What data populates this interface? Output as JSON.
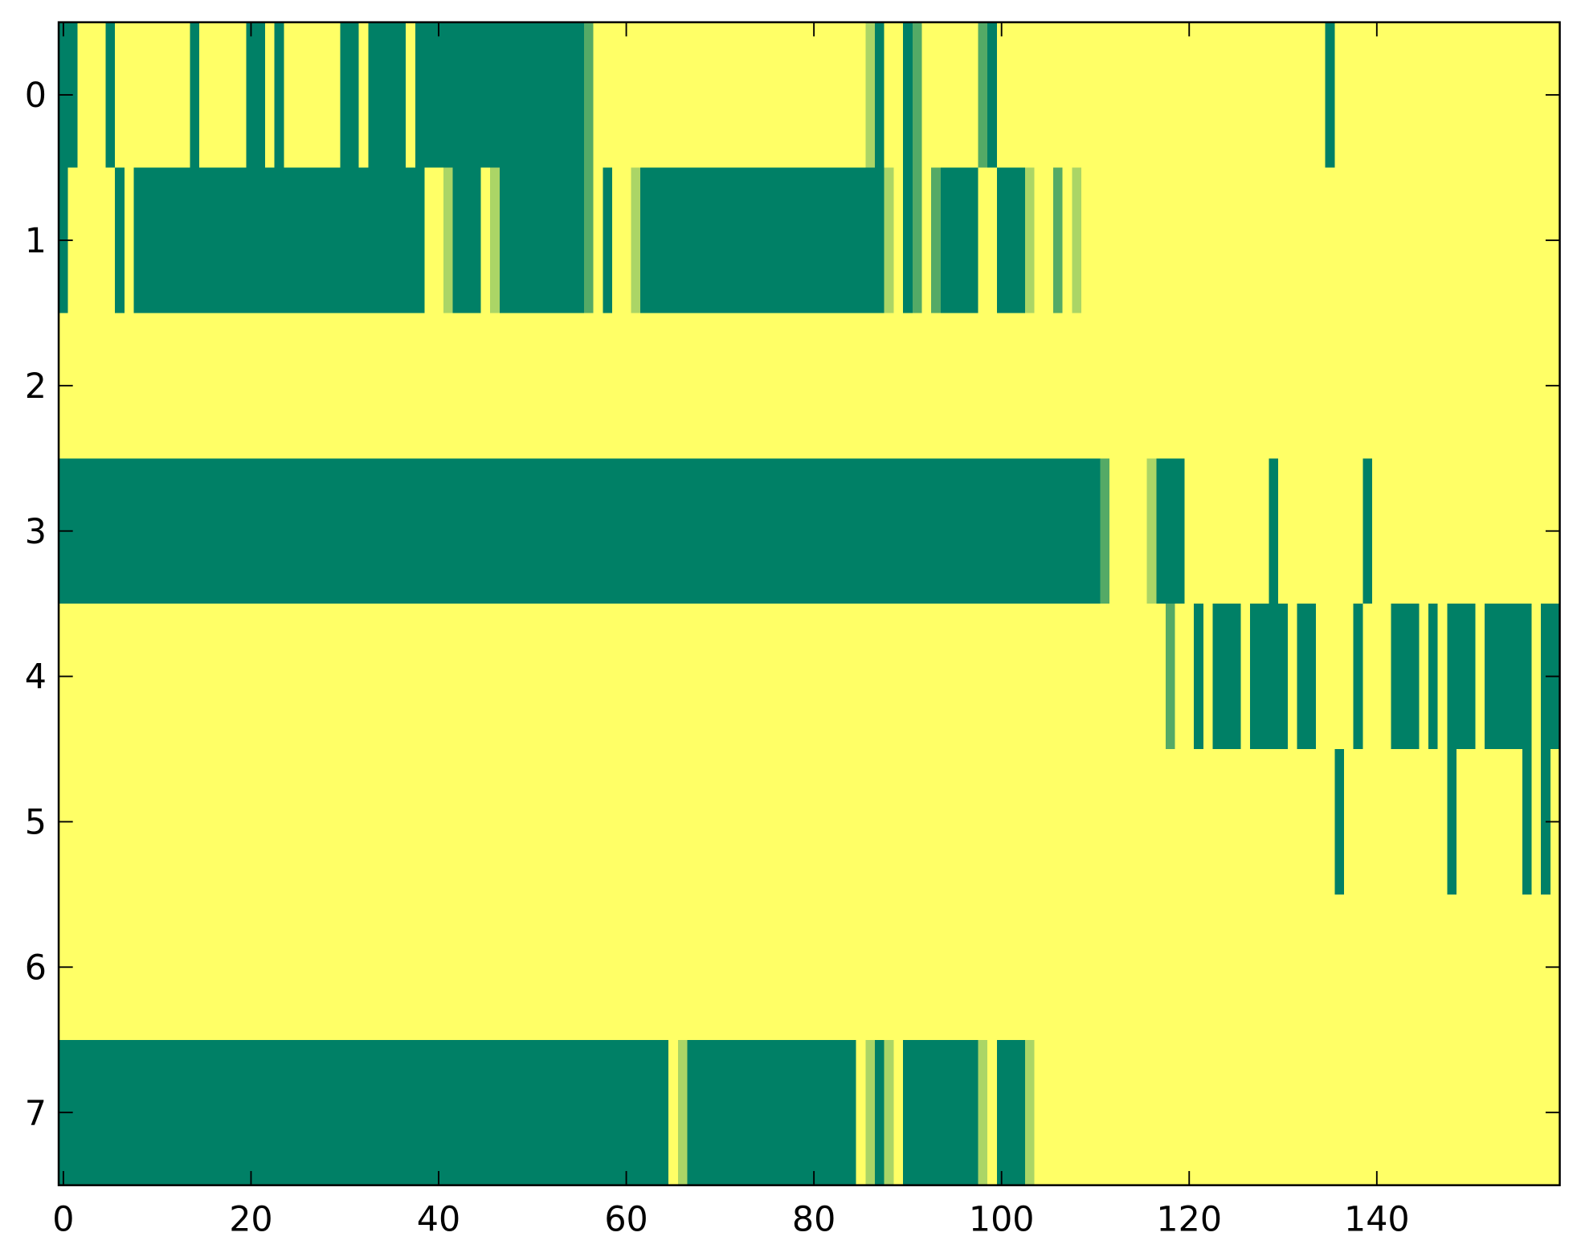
{
  "chart_data": {
    "type": "heatmap",
    "xlim": [
      -0.5,
      159.5
    ],
    "ylim": [
      7.5,
      -0.5
    ],
    "xticks": [
      0,
      20,
      40,
      60,
      80,
      100,
      120,
      140
    ],
    "yticks": [
      0,
      1,
      2,
      3,
      4,
      5,
      6,
      7
    ],
    "clim": [
      0,
      1
    ],
    "colormap": [
      "#008066",
      "#ffff66"
    ],
    "z": [
      [
        0,
        0,
        1,
        1,
        1,
        0,
        1,
        1,
        1,
        1,
        1,
        1,
        1,
        1,
        0,
        1,
        1,
        1,
        1,
        1,
        0,
        0,
        1,
        0,
        1,
        1,
        1,
        1,
        1,
        1,
        0,
        0,
        1,
        0,
        0,
        0,
        0,
        1,
        0,
        0,
        0,
        0,
        0,
        0,
        0,
        0,
        0,
        0,
        0,
        0,
        0,
        0,
        0,
        0,
        0,
        0,
        0.33,
        1,
        1,
        1,
        1,
        1,
        1,
        1,
        1,
        1,
        1,
        1,
        1,
        1,
        1,
        1,
        1,
        1,
        1,
        1,
        1,
        1,
        1,
        1,
        1,
        1,
        1,
        1,
        1,
        1,
        0.67,
        0,
        1,
        1,
        0,
        0.33,
        1,
        1,
        1,
        1,
        1,
        1,
        0.33,
        0,
        1,
        1,
        1,
        1,
        1,
        1,
        1,
        1,
        1,
        1,
        1,
        1,
        1,
        1,
        1,
        1,
        1,
        1,
        1,
        1,
        1,
        1,
        1,
        1,
        1,
        1,
        1,
        1,
        1,
        1,
        1,
        1,
        1,
        1,
        1,
        0,
        1,
        1,
        1,
        1,
        1,
        1,
        1,
        1,
        1,
        1,
        1,
        1,
        1,
        1,
        1,
        1,
        1,
        1,
        1,
        1,
        1,
        1,
        1,
        1
      ],
      [
        0,
        1,
        1,
        1,
        1,
        1,
        0,
        1,
        0,
        0,
        0,
        0,
        0,
        0,
        0,
        0,
        0,
        0,
        0,
        0,
        0,
        0,
        0,
        0,
        0,
        0,
        0,
        0,
        0,
        0,
        0,
        0,
        0,
        0,
        0,
        0,
        0,
        0,
        0,
        1,
        1,
        0.67,
        0,
        0,
        0,
        1,
        0.67,
        0,
        0,
        0,
        0,
        0,
        0,
        0,
        0,
        0,
        0.33,
        1,
        0,
        1,
        1,
        0.67,
        0,
        0,
        0,
        0,
        0,
        0,
        0,
        0,
        0,
        0,
        0,
        0,
        0,
        0,
        0,
        0,
        0,
        0,
        0,
        0,
        0,
        0,
        0,
        0,
        0,
        0,
        0.67,
        1,
        0,
        0.33,
        1,
        0.33,
        0,
        0,
        0,
        0,
        1,
        1,
        0,
        0,
        0,
        0.67,
        1,
        1,
        0.33,
        1,
        0.67,
        1,
        1,
        1,
        1,
        1,
        1,
        1,
        1,
        1,
        1,
        1,
        1,
        1,
        1,
        1,
        1,
        1,
        1,
        1,
        1,
        1,
        1,
        1,
        1,
        1,
        1,
        1,
        1,
        1,
        1,
        1,
        1,
        1,
        1,
        1,
        1,
        1,
        1,
        1,
        1,
        1,
        1,
        1,
        1,
        1,
        1,
        1,
        1,
        1,
        1,
        1
      ],
      [
        1,
        1,
        1,
        1,
        1,
        1,
        1,
        1,
        1,
        1,
        1,
        1,
        1,
        1,
        1,
        1,
        1,
        1,
        1,
        1,
        1,
        1,
        1,
        1,
        1,
        1,
        1,
        1,
        1,
        1,
        1,
        1,
        1,
        1,
        1,
        1,
        1,
        1,
        1,
        1,
        1,
        1,
        1,
        1,
        1,
        1,
        1,
        1,
        1,
        1,
        1,
        1,
        1,
        1,
        1,
        1,
        1,
        1,
        1,
        1,
        1,
        1,
        1,
        1,
        1,
        1,
        1,
        1,
        1,
        1,
        1,
        1,
        1,
        1,
        1,
        1,
        1,
        1,
        1,
        1,
        1,
        1,
        1,
        1,
        1,
        1,
        1,
        1,
        1,
        1,
        1,
        1,
        1,
        1,
        1,
        1,
        1,
        1,
        1,
        1,
        1,
        1,
        1,
        1,
        1,
        1,
        1,
        1,
        1,
        1,
        1,
        1,
        1,
        1,
        1,
        1,
        1,
        1,
        1,
        1,
        1,
        1,
        1,
        1,
        1,
        1,
        1,
        1,
        1,
        1,
        1,
        1,
        1,
        1,
        1,
        1,
        1,
        1,
        1,
        1,
        1,
        1,
        1,
        1,
        1,
        1,
        1,
        1,
        1,
        1,
        1,
        1,
        1,
        1,
        1,
        1,
        1,
        1,
        1,
        1
      ],
      [
        0,
        0,
        0,
        0,
        0,
        0,
        0,
        0,
        0,
        0,
        0,
        0,
        0,
        0,
        0,
        0,
        0,
        0,
        0,
        0,
        0,
        0,
        0,
        0,
        0,
        0,
        0,
        0,
        0,
        0,
        0,
        0,
        0,
        0,
        0,
        0,
        0,
        0,
        0,
        0,
        0,
        0,
        0,
        0,
        0,
        0,
        0,
        0,
        0,
        0,
        0,
        0,
        0,
        0,
        0,
        0,
        0,
        0,
        0,
        0,
        0,
        0,
        0,
        0,
        0,
        0,
        0,
        0,
        0,
        0,
        0,
        0,
        0,
        0,
        0,
        0,
        0,
        0,
        0,
        0,
        0,
        0,
        0,
        0,
        0,
        0,
        0,
        0,
        0,
        0,
        0,
        0,
        0,
        0,
        0,
        0,
        0,
        0,
        0,
        0,
        0,
        0,
        0,
        0,
        0,
        0,
        0,
        0,
        0,
        0,
        0,
        0.33,
        1,
        1,
        1,
        1,
        0.67,
        0,
        0,
        0,
        1,
        1,
        1,
        1,
        1,
        1,
        1,
        1,
        1,
        0,
        1,
        1,
        1,
        1,
        1,
        1,
        1,
        1,
        1,
        0,
        1,
        1,
        1,
        1,
        1,
        1,
        1,
        1,
        1,
        1,
        1,
        1,
        1,
        1,
        1,
        1,
        1,
        1,
        1,
        1
      ],
      [
        1,
        1,
        1,
        1,
        1,
        1,
        1,
        1,
        1,
        1,
        1,
        1,
        1,
        1,
        1,
        1,
        1,
        1,
        1,
        1,
        1,
        1,
        1,
        1,
        1,
        1,
        1,
        1,
        1,
        1,
        1,
        1,
        1,
        1,
        1,
        1,
        1,
        1,
        1,
        1,
        1,
        1,
        1,
        1,
        1,
        1,
        1,
        1,
        1,
        1,
        1,
        1,
        1,
        1,
        1,
        1,
        1,
        1,
        1,
        1,
        1,
        1,
        1,
        1,
        1,
        1,
        1,
        1,
        1,
        1,
        1,
        1,
        1,
        1,
        1,
        1,
        1,
        1,
        1,
        1,
        1,
        1,
        1,
        1,
        1,
        1,
        1,
        1,
        1,
        1,
        1,
        1,
        1,
        1,
        1,
        1,
        1,
        1,
        1,
        1,
        1,
        1,
        1,
        1,
        1,
        1,
        1,
        1,
        1,
        1,
        1,
        1,
        1,
        1,
        1,
        1,
        1,
        1,
        0.33,
        1,
        1,
        0,
        1,
        0,
        0,
        0,
        1,
        0,
        0,
        0,
        0,
        1,
        0,
        0,
        1,
        1,
        1,
        1,
        0,
        1,
        1,
        1,
        0,
        0,
        0,
        1,
        0,
        1,
        0,
        0,
        0,
        1,
        0,
        0,
        0,
        0,
        0,
        1,
        0,
        0
      ],
      [
        1,
        1,
        1,
        1,
        1,
        1,
        1,
        1,
        1,
        1,
        1,
        1,
        1,
        1,
        1,
        1,
        1,
        1,
        1,
        1,
        1,
        1,
        1,
        1,
        1,
        1,
        1,
        1,
        1,
        1,
        1,
        1,
        1,
        1,
        1,
        1,
        1,
        1,
        1,
        1,
        1,
        1,
        1,
        1,
        1,
        1,
        1,
        1,
        1,
        1,
        1,
        1,
        1,
        1,
        1,
        1,
        1,
        1,
        1,
        1,
        1,
        1,
        1,
        1,
        1,
        1,
        1,
        1,
        1,
        1,
        1,
        1,
        1,
        1,
        1,
        1,
        1,
        1,
        1,
        1,
        1,
        1,
        1,
        1,
        1,
        1,
        1,
        1,
        1,
        1,
        1,
        1,
        1,
        1,
        1,
        1,
        1,
        1,
        1,
        1,
        1,
        1,
        1,
        1,
        1,
        1,
        1,
        1,
        1,
        1,
        1,
        1,
        1,
        1,
        1,
        1,
        1,
        1,
        1,
        1,
        1,
        1,
        1,
        1,
        1,
        1,
        1,
        1,
        1,
        1,
        1,
        1,
        1,
        1,
        1,
        1,
        0,
        1,
        1,
        1,
        1,
        1,
        1,
        1,
        1,
        1,
        1,
        1,
        0,
        1,
        1,
        1,
        1,
        1,
        1,
        1,
        0,
        1,
        0,
        1
      ],
      [
        1,
        1,
        1,
        1,
        1,
        1,
        1,
        1,
        1,
        1,
        1,
        1,
        1,
        1,
        1,
        1,
        1,
        1,
        1,
        1,
        1,
        1,
        1,
        1,
        1,
        1,
        1,
        1,
        1,
        1,
        1,
        1,
        1,
        1,
        1,
        1,
        1,
        1,
        1,
        1,
        1,
        1,
        1,
        1,
        1,
        1,
        1,
        1,
        1,
        1,
        1,
        1,
        1,
        1,
        1,
        1,
        1,
        1,
        1,
        1,
        1,
        1,
        1,
        1,
        1,
        1,
        1,
        1,
        1,
        1,
        1,
        1,
        1,
        1,
        1,
        1,
        1,
        1,
        1,
        1,
        1,
        1,
        1,
        1,
        1,
        1,
        1,
        1,
        1,
        1,
        1,
        1,
        1,
        1,
        1,
        1,
        1,
        1,
        1,
        1,
        1,
        1,
        1,
        1,
        1,
        1,
        1,
        1,
        1,
        1,
        1,
        1,
        1,
        1,
        1,
        1,
        1,
        1,
        1,
        1,
        1,
        1,
        1,
        1,
        1,
        1,
        1,
        1,
        1,
        1,
        1,
        1,
        1,
        1,
        1,
        1,
        1,
        1,
        1,
        1,
        1,
        1,
        1,
        1,
        1,
        1,
        1,
        1,
        1,
        1,
        1,
        1,
        1,
        1,
        1,
        1,
        1,
        1,
        1,
        1
      ],
      [
        0,
        0,
        0,
        0,
        0,
        0,
        0,
        0,
        0,
        0,
        0,
        0,
        0,
        0,
        0,
        0,
        0,
        0,
        0,
        0,
        0,
        0,
        0,
        0,
        0,
        0,
        0,
        0,
        0,
        0,
        0,
        0,
        0,
        0,
        0,
        0,
        0,
        0,
        0,
        0,
        0,
        0,
        0,
        0,
        0,
        0,
        0,
        0,
        0,
        0,
        0,
        0,
        0,
        0,
        0,
        0,
        0,
        0,
        0,
        0,
        0,
        0,
        0,
        0,
        0,
        1,
        0.67,
        0,
        0,
        0,
        0,
        0,
        0,
        0,
        0,
        0,
        0,
        0,
        0,
        0,
        0,
        0,
        0,
        0,
        0,
        1,
        0.67,
        0,
        0.67,
        1,
        0,
        0,
        0,
        0,
        0,
        0,
        0,
        0,
        0.67,
        1,
        0,
        0,
        0,
        0.67,
        1,
        1,
        1,
        1,
        1,
        1,
        1,
        1,
        1,
        1,
        1,
        1,
        1,
        1,
        1,
        1,
        1,
        1,
        1,
        1,
        1,
        1,
        1,
        1,
        1,
        1,
        1,
        1,
        1,
        1,
        1,
        1,
        1,
        1,
        1,
        1,
        1,
        1,
        1,
        1,
        1,
        1,
        1,
        1,
        1,
        1,
        1,
        1,
        1,
        1,
        1,
        1,
        1,
        1,
        1,
        1
      ]
    ]
  }
}
